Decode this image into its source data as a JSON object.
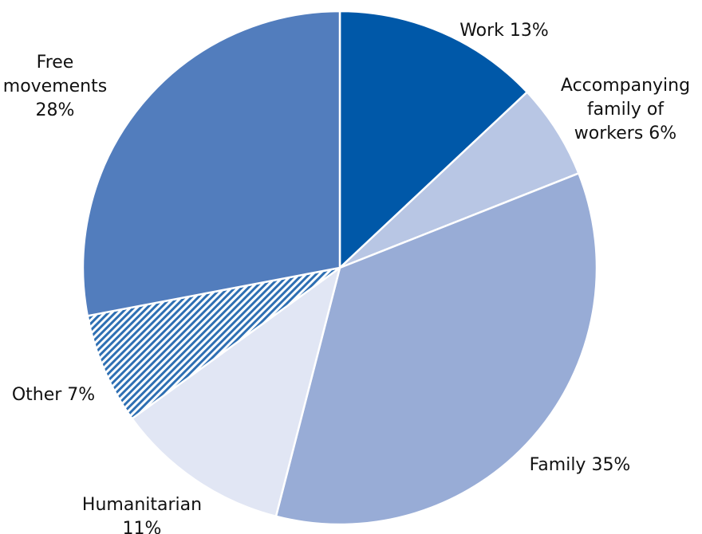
{
  "chart_data": {
    "type": "pie",
    "title": "",
    "start_angle_deg": 0,
    "direction": "clockwise",
    "slices": [
      {
        "name": "Work",
        "value": 13,
        "color": "#0058a8",
        "pattern": "none",
        "label_lines": [
          "Work 13%"
        ]
      },
      {
        "name": "Accompanying family of workers",
        "value": 6,
        "color": "#b8c6e4",
        "pattern": "none",
        "label_lines": [
          "Accompanying",
          "family of",
          "workers 6%"
        ]
      },
      {
        "name": "Family",
        "value": 35,
        "color": "#98acd6",
        "pattern": "none",
        "label_lines": [
          "Family 35%"
        ]
      },
      {
        "name": "Humanitarian",
        "value": 11,
        "color": "#e1e6f4",
        "pattern": "none",
        "label_lines": [
          "Humanitarian",
          "11%"
        ]
      },
      {
        "name": "Other",
        "value": 7,
        "color": "#2e6fb3",
        "pattern": "diagonal-hatch",
        "label_lines": [
          "Other 7%"
        ]
      },
      {
        "name": "Free movements",
        "value": 28,
        "color": "#527dbd",
        "pattern": "none",
        "label_lines": [
          "Free",
          "movements",
          "28%"
        ]
      }
    ]
  }
}
